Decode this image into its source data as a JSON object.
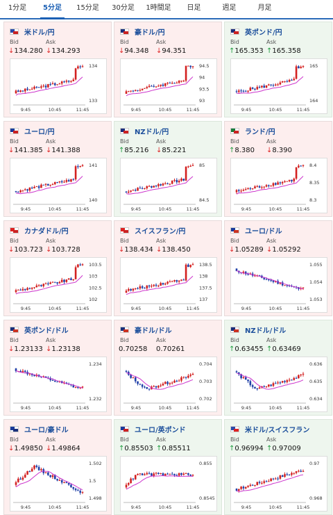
{
  "tabs": [
    {
      "label": "1分足",
      "active": false
    },
    {
      "label": "5分足",
      "active": true
    },
    {
      "label": "15分足",
      "active": false
    },
    {
      "label": "30分足",
      "active": false
    },
    {
      "label": "1時間足",
      "active": false
    },
    {
      "label": "日足",
      "active": false
    },
    {
      "label": "週足",
      "active": false
    },
    {
      "label": "月足",
      "active": false
    }
  ],
  "labels": {
    "bid": "Bid",
    "ask": "Ask"
  },
  "colors": {
    "down_bg": "#fdeeee",
    "up_bg": "#eef6ee",
    "down_arrow": "#d22222",
    "up_arrow": "#1a9a3a",
    "candle_up": "#d32020",
    "candle_down": "#1f3fa8",
    "ma": "#cc33cc",
    "link": "#1b4e9b"
  },
  "cards": [
    {
      "pair": "米ドル/円",
      "flag": "us-jp",
      "dir": "down",
      "bid_arrow": "↓",
      "bid": "134.280",
      "ask_arrow": "↓",
      "ask": "134.293",
      "x_ticks": [
        "9:45",
        "10:45",
        "11:45"
      ],
      "y_ticks": [
        "134",
        "133"
      ],
      "trend": "up-spike"
    },
    {
      "pair": "豪ドル/円",
      "flag": "au-jp",
      "dir": "down",
      "bid_arrow": "↓",
      "bid": "94.348",
      "ask_arrow": "↓",
      "ask": "94.351",
      "x_ticks": [
        "9:45",
        "10:45",
        "11:45"
      ],
      "y_ticks": [
        "94.5",
        "94",
        "93.5",
        "93"
      ],
      "trend": "up-spike"
    },
    {
      "pair": "英ポンド/円",
      "flag": "gb-jp",
      "dir": "up",
      "bid_arrow": "↑",
      "bid": "165.353",
      "ask_arrow": "↑",
      "ask": "165.358",
      "x_ticks": [
        "9:45",
        "10:45",
        "11:45"
      ],
      "y_ticks": [
        "165",
        "164"
      ],
      "trend": "up-spike"
    },
    {
      "pair": "ユーロ/円",
      "flag": "eu-jp",
      "dir": "down",
      "bid_arrow": "↓",
      "bid": "141.385",
      "ask_arrow": "↓",
      "ask": "141.388",
      "x_ticks": [
        "9:45",
        "10:45",
        "11:45"
      ],
      "y_ticks": [
        "141",
        "140"
      ],
      "trend": "up-spike"
    },
    {
      "pair": "NZドル/円",
      "flag": "nz-jp",
      "dir": "up",
      "bid_arrow": "↑",
      "bid": "85.216",
      "ask_arrow": "↓",
      "ask": "85.221",
      "x_ticks": [
        "9:45",
        "10:45",
        "11:45"
      ],
      "y_ticks": [
        "85",
        "84.5"
      ],
      "trend": "up-spike"
    },
    {
      "pair": "ランド/円",
      "flag": "za-jp",
      "dir": "down",
      "bid_arrow": "↑",
      "bid": "8.380",
      "ask_arrow": "↓",
      "ask": "8.390",
      "x_ticks": [
        "9:45",
        "10:45",
        "11:45"
      ],
      "y_ticks": [
        "8.4",
        "8.35",
        "8.3"
      ],
      "trend": "up-spike"
    },
    {
      "pair": "カナダドル/円",
      "flag": "ca-jp",
      "dir": "down",
      "bid_arrow": "↓",
      "bid": "103.723",
      "ask_arrow": "↓",
      "ask": "103.728",
      "x_ticks": [
        "9:45",
        "10:45",
        "11:45"
      ],
      "y_ticks": [
        "103.5",
        "103",
        "102.5",
        "102"
      ],
      "trend": "up-spike"
    },
    {
      "pair": "スイスフラン/円",
      "flag": "ch-jp",
      "dir": "down",
      "bid_arrow": "↓",
      "bid": "138.434",
      "ask_arrow": "↓",
      "ask": "138.450",
      "x_ticks": [
        "9:45",
        "10:45",
        "11:45"
      ],
      "y_ticks": [
        "138.5",
        "138",
        "137.5",
        "137"
      ],
      "trend": "up-spike"
    },
    {
      "pair": "ユーロ/ドル",
      "flag": "eu-us",
      "dir": "down",
      "bid_arrow": "↓",
      "bid": "1.05289",
      "ask_arrow": "↓",
      "ask": "1.05292",
      "x_ticks": [
        "9:45",
        "10:45",
        "11:45"
      ],
      "y_ticks": [
        "1.055",
        "1.054",
        "1.053"
      ],
      "trend": "down"
    },
    {
      "pair": "英ポンド/ドル",
      "flag": "gb-us",
      "dir": "down",
      "bid_arrow": "↓",
      "bid": "1.23133",
      "ask_arrow": "↓",
      "ask": "1.23138",
      "x_ticks": [
        "9:45",
        "10:45",
        "11:45"
      ],
      "y_ticks": [
        "1.234",
        "1.232"
      ],
      "trend": "down"
    },
    {
      "pair": "豪ドル/ドル",
      "flag": "au-us",
      "dir": "down",
      "bid_arrow": "",
      "bid": "0.70258",
      "ask_arrow": "",
      "ask": "0.70261",
      "x_ticks": [
        "9:45",
        "10:45",
        "11:45"
      ],
      "y_ticks": [
        "0.704",
        "0.703",
        "0.702"
      ],
      "trend": "dip"
    },
    {
      "pair": "NZドル/ドル",
      "flag": "nz-us",
      "dir": "up",
      "bid_arrow": "↑",
      "bid": "0.63455",
      "ask_arrow": "↑",
      "ask": "0.63469",
      "x_ticks": [
        "9:45",
        "10:45",
        "11:45"
      ],
      "y_ticks": [
        "0.636",
        "0.635",
        "0.634"
      ],
      "trend": "dip"
    },
    {
      "pair": "ユーロ/豪ドル",
      "flag": "eu-au",
      "dir": "down",
      "bid_arrow": "↓",
      "bid": "1.49850",
      "ask_arrow": "↓",
      "ask": "1.49864",
      "x_ticks": [
        "9:45",
        "10:45",
        "11:45"
      ],
      "y_ticks": [
        "1.502",
        "1.5",
        "1.498"
      ],
      "trend": "hump"
    },
    {
      "pair": "ユーロ/英ポンド",
      "flag": "eu-gb",
      "dir": "up",
      "bid_arrow": "↑",
      "bid": "0.85503",
      "ask_arrow": "↑",
      "ask": "0.85511",
      "x_ticks": [
        "9:45",
        "10:45",
        "11:45"
      ],
      "y_ticks": [
        "0.855",
        "0.8545"
      ],
      "trend": "flat"
    },
    {
      "pair": "米ドル/スイスフラン",
      "flag": "us-ch",
      "dir": "up",
      "bid_arrow": "↑",
      "bid": "0.96994",
      "ask_arrow": "↑",
      "ask": "0.97009",
      "x_ticks": [
        "9:45",
        "10:45",
        "11:45"
      ],
      "y_ticks": [
        "0.97",
        "0.968"
      ],
      "trend": "up"
    }
  ]
}
